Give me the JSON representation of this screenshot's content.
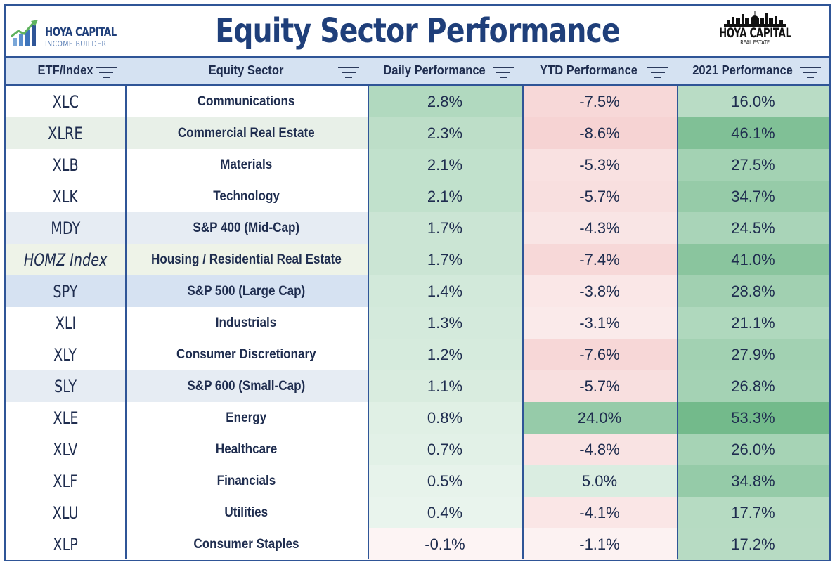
{
  "header": {
    "title": "Equity Sector Performance",
    "logo_left_line1": "HOYA CAPITAL",
    "logo_left_line2": "INCOME BUILDER",
    "logo_right_line1": "HOYA CAPITAL",
    "logo_right_line2": "REAL ESTATE"
  },
  "chart_data": {
    "type": "table",
    "title": "Equity Sector Performance",
    "columns": [
      "ETF/Index",
      "Equity Sector",
      "Daily Performance",
      "YTD Performance",
      "2021 Performance"
    ],
    "rows": [
      {
        "etf": "XLC",
        "sector": "Communications",
        "daily": "2.8%",
        "ytd": "-7.5%",
        "y2021": "16.0%",
        "daily_v": 2.8,
        "ytd_v": -7.5,
        "y2021_v": 16.0
      },
      {
        "etf": "XLRE",
        "sector": "Commercial Real Estate",
        "daily": "2.3%",
        "ytd": "-8.6%",
        "y2021": "46.1%",
        "daily_v": 2.3,
        "ytd_v": -8.6,
        "y2021_v": 46.1
      },
      {
        "etf": "XLB",
        "sector": "Materials",
        "daily": "2.1%",
        "ytd": "-5.3%",
        "y2021": "27.5%",
        "daily_v": 2.1,
        "ytd_v": -5.3,
        "y2021_v": 27.5
      },
      {
        "etf": "XLK",
        "sector": "Technology",
        "daily": "2.1%",
        "ytd": "-5.7%",
        "y2021": "34.7%",
        "daily_v": 2.1,
        "ytd_v": -5.7,
        "y2021_v": 34.7
      },
      {
        "etf": "MDY",
        "sector": "S&P 400 (Mid-Cap)",
        "daily": "1.7%",
        "ytd": "-4.3%",
        "y2021": "24.5%",
        "daily_v": 1.7,
        "ytd_v": -4.3,
        "y2021_v": 24.5
      },
      {
        "etf": "HOMZ Index",
        "sector": "Housing / Residential Real Estate",
        "daily": "1.7%",
        "ytd": "-7.4%",
        "y2021": "41.0%",
        "daily_v": 1.7,
        "ytd_v": -7.4,
        "y2021_v": 41.0
      },
      {
        "etf": "SPY",
        "sector": "S&P 500 (Large Cap)",
        "daily": "1.4%",
        "ytd": "-3.8%",
        "y2021": "28.8%",
        "daily_v": 1.4,
        "ytd_v": -3.8,
        "y2021_v": 28.8
      },
      {
        "etf": "XLI",
        "sector": "Industrials",
        "daily": "1.3%",
        "ytd": "-3.1%",
        "y2021": "21.1%",
        "daily_v": 1.3,
        "ytd_v": -3.1,
        "y2021_v": 21.1
      },
      {
        "etf": "XLY",
        "sector": "Consumer Discretionary",
        "daily": "1.2%",
        "ytd": "-7.6%",
        "y2021": "27.9%",
        "daily_v": 1.2,
        "ytd_v": -7.6,
        "y2021_v": 27.9
      },
      {
        "etf": "SLY",
        "sector": "S&P 600 (Small-Cap)",
        "daily": "1.1%",
        "ytd": "-5.7%",
        "y2021": "26.8%",
        "daily_v": 1.1,
        "ytd_v": -5.7,
        "y2021_v": 26.8
      },
      {
        "etf": "XLE",
        "sector": "Energy",
        "daily": "0.8%",
        "ytd": "24.0%",
        "y2021": "53.3%",
        "daily_v": 0.8,
        "ytd_v": 24.0,
        "y2021_v": 53.3
      },
      {
        "etf": "XLV",
        "sector": "Healthcare",
        "daily": "0.7%",
        "ytd": "-4.8%",
        "y2021": "26.0%",
        "daily_v": 0.7,
        "ytd_v": -4.8,
        "y2021_v": 26.0
      },
      {
        "etf": "XLF",
        "sector": "Financials",
        "daily": "0.5%",
        "ytd": "5.0%",
        "y2021": "34.8%",
        "daily_v": 0.5,
        "ytd_v": 5.0,
        "y2021_v": 34.8
      },
      {
        "etf": "XLU",
        "sector": "Utilities",
        "daily": "0.4%",
        "ytd": "-4.1%",
        "y2021": "17.7%",
        "daily_v": 0.4,
        "ytd_v": -4.1,
        "y2021_v": 17.7
      },
      {
        "etf": "XLP",
        "sector": "Consumer Staples",
        "daily": "-0.1%",
        "ytd": "-1.1%",
        "y2021": "17.2%",
        "daily_v": -0.1,
        "ytd_v": -1.1,
        "y2021_v": 17.2
      }
    ]
  },
  "etf_row_highlight": {
    "XLRE": "#e8f0e8",
    "MDY": "#e6ecf3",
    "HOMZ Index": "#eef3e8",
    "SPY": "#d6e2f2",
    "SLY": "#e6ecf3"
  },
  "colors": {
    "positive": "#63b27e",
    "negative": "#f0b8b8",
    "base": "#ffffff",
    "accent": "#2f5597",
    "title": "#1f3f7a",
    "header_bg": "#d5e2f2"
  }
}
